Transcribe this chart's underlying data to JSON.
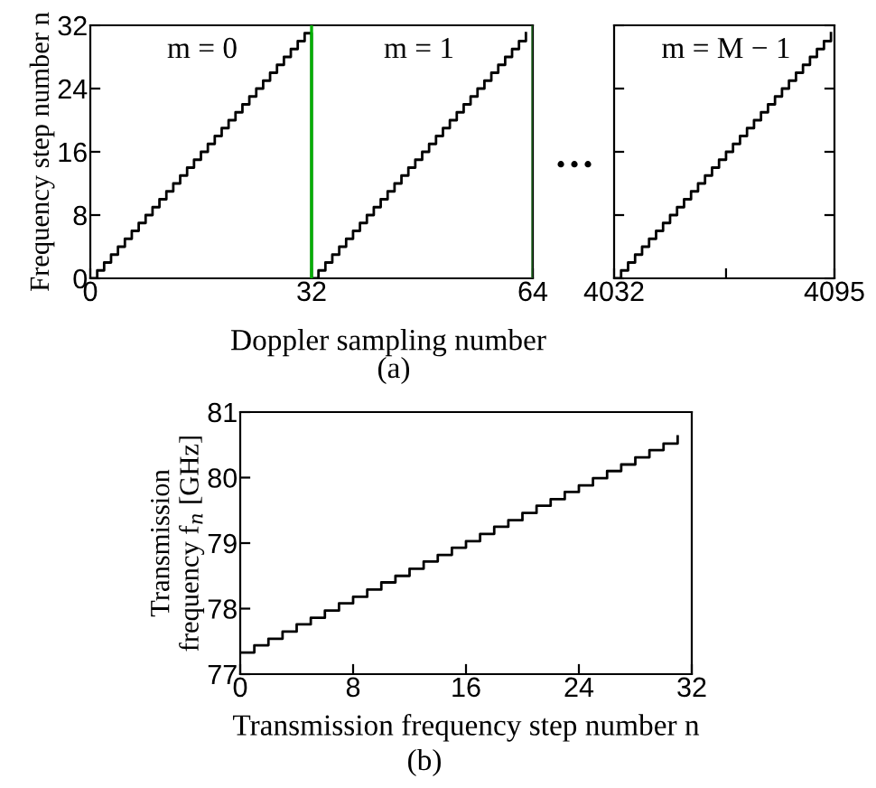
{
  "chart_data": [
    {
      "type": "step",
      "ylabel": "Frequency step number n",
      "xlabel": "Doppler sampling number",
      "annotations": [
        "m = 0",
        "m = 1",
        "…",
        "(a)"
      ],
      "x": [
        0,
        1,
        2,
        3,
        4,
        5,
        6,
        7,
        8,
        9,
        10,
        11,
        12,
        13,
        14,
        15,
        16,
        17,
        18,
        19,
        20,
        21,
        22,
        23,
        24,
        25,
        26,
        27,
        28,
        29,
        30,
        31,
        32,
        33,
        34,
        35,
        36,
        37,
        38,
        39,
        40,
        41,
        42,
        43,
        44,
        45,
        46,
        47,
        48,
        49,
        50,
        51,
        52,
        53,
        54,
        55,
        56,
        57,
        58,
        59,
        60,
        61,
        62,
        63
      ],
      "series": [
        {
          "color": "#000000",
          "values": [
            0,
            1,
            2,
            3,
            4,
            5,
            6,
            7,
            8,
            9,
            10,
            11,
            12,
            13,
            14,
            15,
            16,
            17,
            18,
            19,
            20,
            21,
            22,
            23,
            24,
            25,
            26,
            27,
            28,
            29,
            30,
            31,
            0,
            1,
            2,
            3,
            4,
            5,
            6,
            7,
            8,
            9,
            10,
            11,
            12,
            13,
            14,
            15,
            16,
            17,
            18,
            19,
            20,
            21,
            22,
            23,
            24,
            25,
            26,
            27,
            28,
            29,
            30,
            31
          ]
        }
      ],
      "ref_lines": [
        {
          "axis": "x",
          "value": 32,
          "color": "#00b000"
        },
        {
          "axis": "x",
          "value": 64,
          "color": "#1a5c1a"
        }
      ],
      "xlim": [
        0,
        64
      ],
      "ylim": [
        0,
        32
      ],
      "xticks": [
        0,
        32,
        64
      ],
      "yticks": [
        0,
        8,
        16,
        24,
        32
      ],
      "grid": false,
      "legend": false
    },
    {
      "type": "step",
      "annotations": [
        "m = M − 1"
      ],
      "x": [
        4032,
        4034,
        4036,
        4038,
        4040,
        4042,
        4044,
        4046,
        4048,
        4050,
        4052,
        4054,
        4056,
        4058,
        4060,
        4062,
        4064,
        4066,
        4068,
        4070,
        4072,
        4074,
        4076,
        4078,
        4080,
        4082,
        4084,
        4086,
        4088,
        4090,
        4092,
        4094
      ],
      "series": [
        {
          "color": "#000000",
          "values": [
            0,
            1,
            2,
            3,
            4,
            5,
            6,
            7,
            8,
            9,
            10,
            11,
            12,
            13,
            14,
            15,
            16,
            17,
            18,
            19,
            20,
            21,
            22,
            23,
            24,
            25,
            26,
            27,
            28,
            29,
            30,
            31
          ]
        }
      ],
      "xlim": [
        4032,
        4095
      ],
      "ylim": [
        0,
        32
      ],
      "xticks": [
        4032,
        {
          "value": 4064,
          "label": null
        },
        4095
      ],
      "yticks": [
        0,
        8,
        16,
        24,
        32
      ],
      "tick_labels": "x",
      "grid": false,
      "legend": false
    },
    {
      "type": "step",
      "xlabel": "Transmission frequency step number n",
      "ylabel": "Transmission\nfrequency f$_{n}$ [GHz]",
      "annotations": [
        "(b)"
      ],
      "x": [
        0,
        1,
        2,
        3,
        4,
        5,
        6,
        7,
        8,
        9,
        10,
        11,
        12,
        13,
        14,
        15,
        16,
        17,
        18,
        19,
        20,
        21,
        22,
        23,
        24,
        25,
        26,
        27,
        28,
        29,
        30,
        31
      ],
      "series": [
        {
          "color": "#000000",
          "values": [
            77.33,
            77.44,
            77.54,
            77.65,
            77.76,
            77.86,
            77.97,
            78.08,
            78.18,
            78.29,
            78.4,
            78.5,
            78.61,
            78.72,
            78.82,
            78.93,
            79.03,
            79.14,
            79.25,
            79.35,
            79.46,
            79.57,
            79.67,
            79.78,
            79.88,
            79.99,
            80.1,
            80.2,
            80.31,
            80.42,
            80.52,
            80.63
          ]
        }
      ],
      "xlim": [
        0,
        32
      ],
      "ylim": [
        77,
        81
      ],
      "xticks": [
        0,
        8,
        16,
        24,
        32
      ],
      "yticks": [
        77,
        78,
        79,
        80,
        81
      ],
      "grid": false,
      "legend": false
    }
  ]
}
